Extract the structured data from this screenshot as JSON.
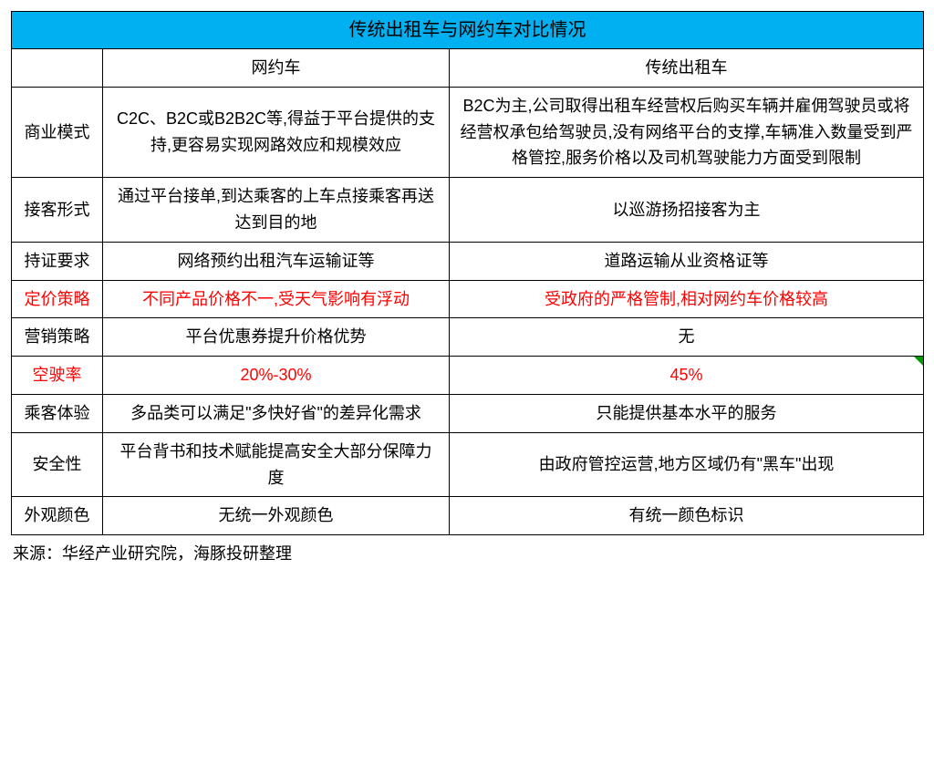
{
  "table": {
    "title": "传统出租车与网约车对比情况",
    "title_bg": "#00b0f0",
    "border_color": "#000000",
    "highlight_color": "#ff0000",
    "triangle_color": "#009b00",
    "columns": {
      "label_blank": "",
      "col_a": "网约车",
      "col_b": "传统出租车"
    },
    "rows": [
      {
        "label": "商业模式",
        "a": "C2C、B2C或B2B2C等,得益于平台提供的支持,更容易实现网路效应和规模效应",
        "b": "B2C为主,公司取得出租车经营权后购买车辆并雇佣驾驶员或将经营权承包给驾驶员,没有网络平台的支撑,车辆准入数量受到严格管控,服务价格以及司机驾驶能力方面受到限制",
        "highlight": false
      },
      {
        "label": "接客形式",
        "a": "通过平台接单,到达乘客的上车点接乘客再送达到目的地",
        "b": "以巡游扬招接客为主",
        "highlight": false
      },
      {
        "label": "持证要求",
        "a": "网络预约出租汽车运输证等",
        "b": "道路运输从业资格证等",
        "highlight": false
      },
      {
        "label": "定价策略",
        "a": "不同产品价格不一,受天气影响有浮动",
        "b": "受政府的严格管制,相对网约车价格较高",
        "highlight": true
      },
      {
        "label": "营销策略",
        "a": "平台优惠券提升价格优势",
        "b": "无",
        "highlight": false
      },
      {
        "label": "空驶率",
        "a": "20%-30%",
        "b": "45%",
        "highlight": true,
        "triangle": true
      },
      {
        "label": "乘客体验",
        "a": "多品类可以满足\"多快好省\"的差异化需求",
        "b": "只能提供基本水平的服务",
        "highlight": false
      },
      {
        "label": "安全性",
        "a": "平台背书和技术赋能提高安全大部分保障力度",
        "b": "由政府管控运营,地方区域仍有\"黑车\"出现",
        "highlight": false
      },
      {
        "label": "外观颜色",
        "a": "无统一外观颜色",
        "b": "有统一颜色标识",
        "highlight": false
      }
    ]
  },
  "source": "来源：华经产业研究院，海豚投研整理"
}
